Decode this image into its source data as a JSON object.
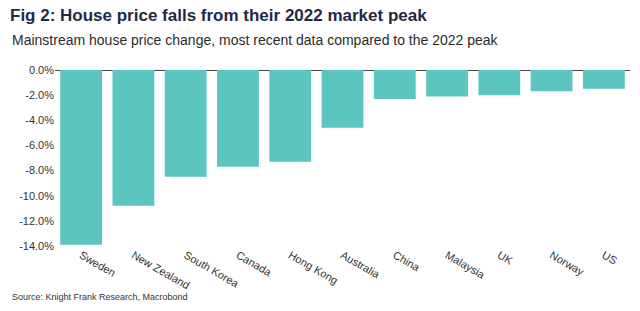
{
  "chart_data": {
    "type": "bar",
    "title": "Fig 2: House price falls from their 2022 market peak",
    "subtitle": "Mainstream house price change, most recent data compared to the 2022 peak",
    "source": "Source: Knight Frank Research, Macrobond",
    "categories": [
      "Sweden",
      "New Zealand",
      "South Korea",
      "Canada",
      "Hong Kong",
      "Australia",
      "China",
      "Malaysia",
      "UK",
      "Norway",
      "US"
    ],
    "values": [
      -13.9,
      -10.8,
      -8.5,
      -7.7,
      -7.3,
      -4.6,
      -2.3,
      -2.1,
      -2.0,
      -1.7,
      -1.5
    ],
    "color": "#5dc5c0",
    "ylim": [
      -14,
      0
    ],
    "yticks": [
      {
        "value": 0,
        "label": "0.0%"
      },
      {
        "value": -2,
        "label": "-2.0%"
      },
      {
        "value": -4,
        "label": "-4.0%"
      },
      {
        "value": -6,
        "label": "-6.0%"
      },
      {
        "value": -8,
        "label": "-8.0%"
      },
      {
        "value": -10,
        "label": "-10.0%"
      },
      {
        "value": -12,
        "label": "-12.0%"
      },
      {
        "value": -14,
        "label": "-14.0%"
      }
    ],
    "grid": false
  }
}
